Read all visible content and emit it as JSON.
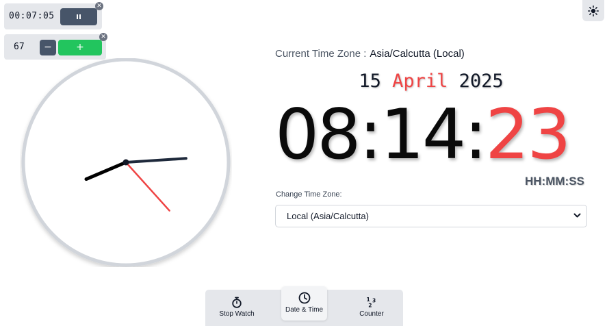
{
  "stopwatch": {
    "time": "00:07:05",
    "pause_icon": "pause-icon",
    "close_icon": "close-icon"
  },
  "counter": {
    "value": "67",
    "decrement_label": "−",
    "increment_label": "+",
    "close_icon": "close-icon"
  },
  "theme_toggle": {
    "icon": "sun-icon"
  },
  "analog_clock": {
    "hours": 8,
    "minutes": 14,
    "seconds": 23,
    "hand_colors": {
      "hour": "#000000",
      "minute": "#1e293b",
      "second": "#ef4444"
    }
  },
  "timezone": {
    "label": "Current Time Zone :",
    "value": "Asia/Calcutta (Local)"
  },
  "date": {
    "day": "15",
    "month": "April",
    "year": "2025"
  },
  "time": {
    "hh": "08",
    "mm": "14",
    "ss": "23",
    "sep": ":",
    "format_label": "HH:MM:SS"
  },
  "change_tz": {
    "label": "Change Time Zone:",
    "selected": "Local (Asia/Calcutta)"
  },
  "nav": {
    "items": [
      {
        "label": "Stop Watch",
        "icon": "stopwatch-icon",
        "active": false
      },
      {
        "label": "Date & Time",
        "icon": "clock-icon",
        "active": true
      },
      {
        "label": "Counter",
        "icon": "counter-icon",
        "active": false
      }
    ]
  },
  "colors": {
    "accent_red": "#ef4444",
    "button_slate": "#475569",
    "button_green": "#22c55e",
    "panel_gray": "#e5e7eb"
  }
}
